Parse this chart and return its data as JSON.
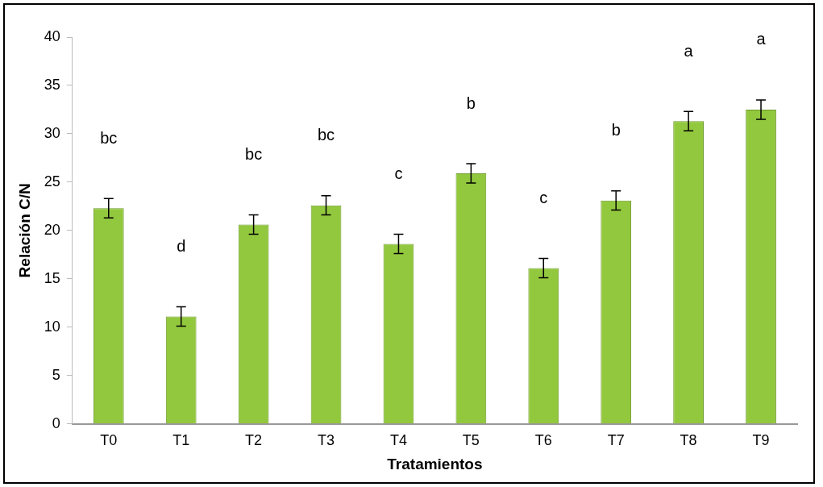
{
  "chart_data": {
    "type": "bar",
    "xlabel": "Tratamientos",
    "ylabel": "Relación C/N",
    "categories": [
      "T0",
      "T1",
      "T2",
      "T3",
      "T4",
      "T5",
      "T6",
      "T7",
      "T8",
      "T9"
    ],
    "values": [
      22.3,
      11.1,
      20.6,
      22.6,
      18.6,
      25.9,
      16.1,
      23.1,
      31.3,
      32.5
    ],
    "errors": [
      1,
      1,
      1,
      1,
      1,
      1,
      1,
      1,
      1,
      1
    ],
    "color": "#92c83e",
    "ylim": [
      0,
      40
    ],
    "yticks": [
      0,
      5,
      10,
      15,
      20,
      25,
      30,
      35,
      40
    ],
    "grid": false,
    "annotations": [
      "bc",
      "d",
      "bc",
      "bc",
      "c",
      "b",
      "c",
      "b",
      "a",
      "a"
    ]
  }
}
